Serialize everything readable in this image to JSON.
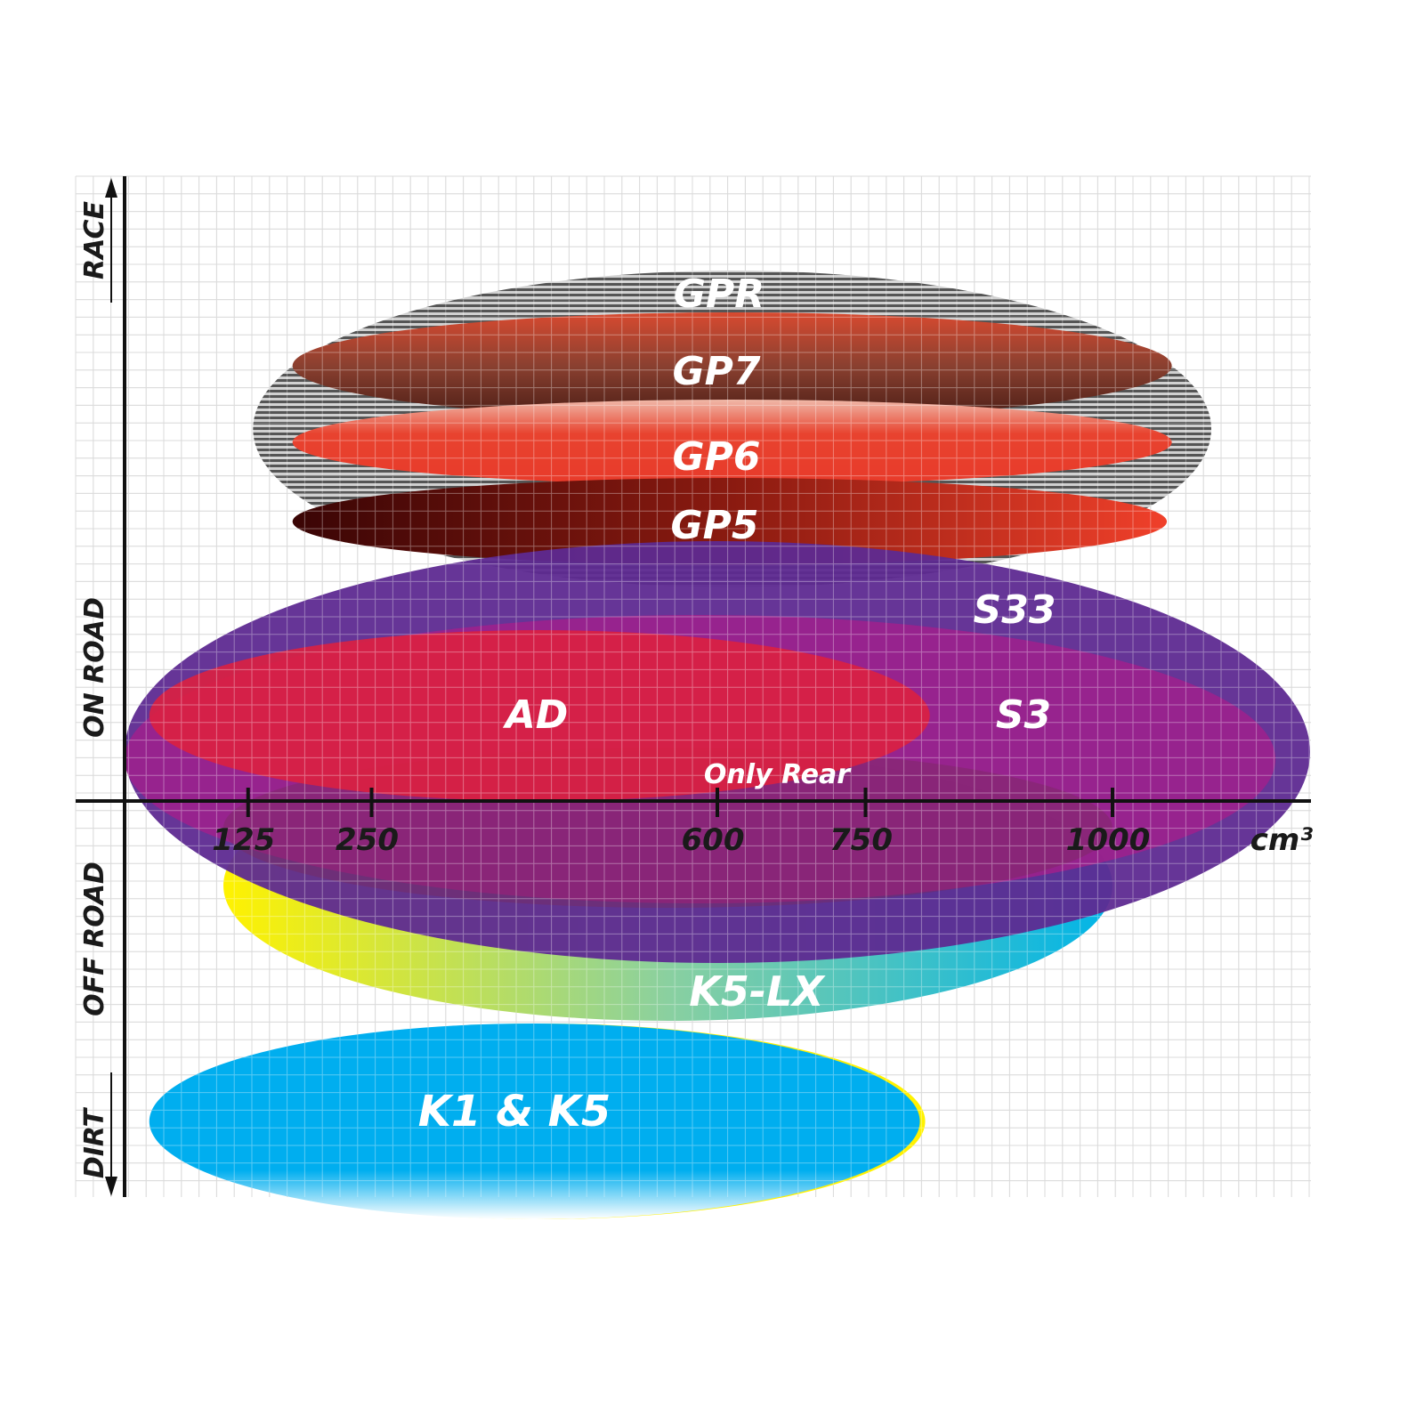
{
  "chart_data": {
    "type": "diagram-ellipses",
    "xlabel": "cm³",
    "x_ticks": [
      125,
      250,
      600,
      750,
      1000
    ],
    "x_tick_labels": [
      "125",
      "250",
      "600",
      "750",
      "1000"
    ],
    "y_categories": [
      "RACE",
      "ON ROAD",
      "OFF ROAD",
      "DIRT"
    ],
    "grid": true,
    "products": [
      {
        "name": "GPR",
        "x_range_cc": [
          130,
          1100
        ],
        "category": "RACE / ON ROAD",
        "color": "#b0b0b0"
      },
      {
        "name": "GP7",
        "x_range_cc": [
          170,
          1060
        ],
        "category": "RACE",
        "color": "#8a3a2a"
      },
      {
        "name": "GP6",
        "x_range_cc": [
          170,
          1060
        ],
        "category": "RACE",
        "color": "#e8432f"
      },
      {
        "name": "GP5",
        "x_range_cc": [
          170,
          1055
        ],
        "category": "RACE / ON ROAD",
        "color": "#a0150f"
      },
      {
        "name": "S33",
        "x_range_cc": [
          0,
          1200
        ],
        "category": "ON ROAD / OFF ROAD",
        "color": "#5e2a91"
      },
      {
        "name": "S3",
        "x_range_cc": [
          0,
          1165
        ],
        "category": "ON ROAD",
        "color": "#a0208c"
      },
      {
        "name": "AD",
        "x_range_cc": [
          25,
          815
        ],
        "category": "ON ROAD",
        "color": "#dc2040"
      },
      {
        "name": "Only Rear",
        "x_range_cc": [
          100,
          1000
        ],
        "category": "ON ROAD / OFF ROAD",
        "color": "#8a2a6a"
      },
      {
        "name": "K5-LX",
        "x_range_cc": [
          100,
          1000
        ],
        "category": "OFF ROAD",
        "color": "#20b8d8"
      },
      {
        "name": "K1 & K5",
        "x_range_cc": [
          25,
          805
        ],
        "category": "DIRT",
        "color": "#00aeef"
      }
    ]
  }
}
